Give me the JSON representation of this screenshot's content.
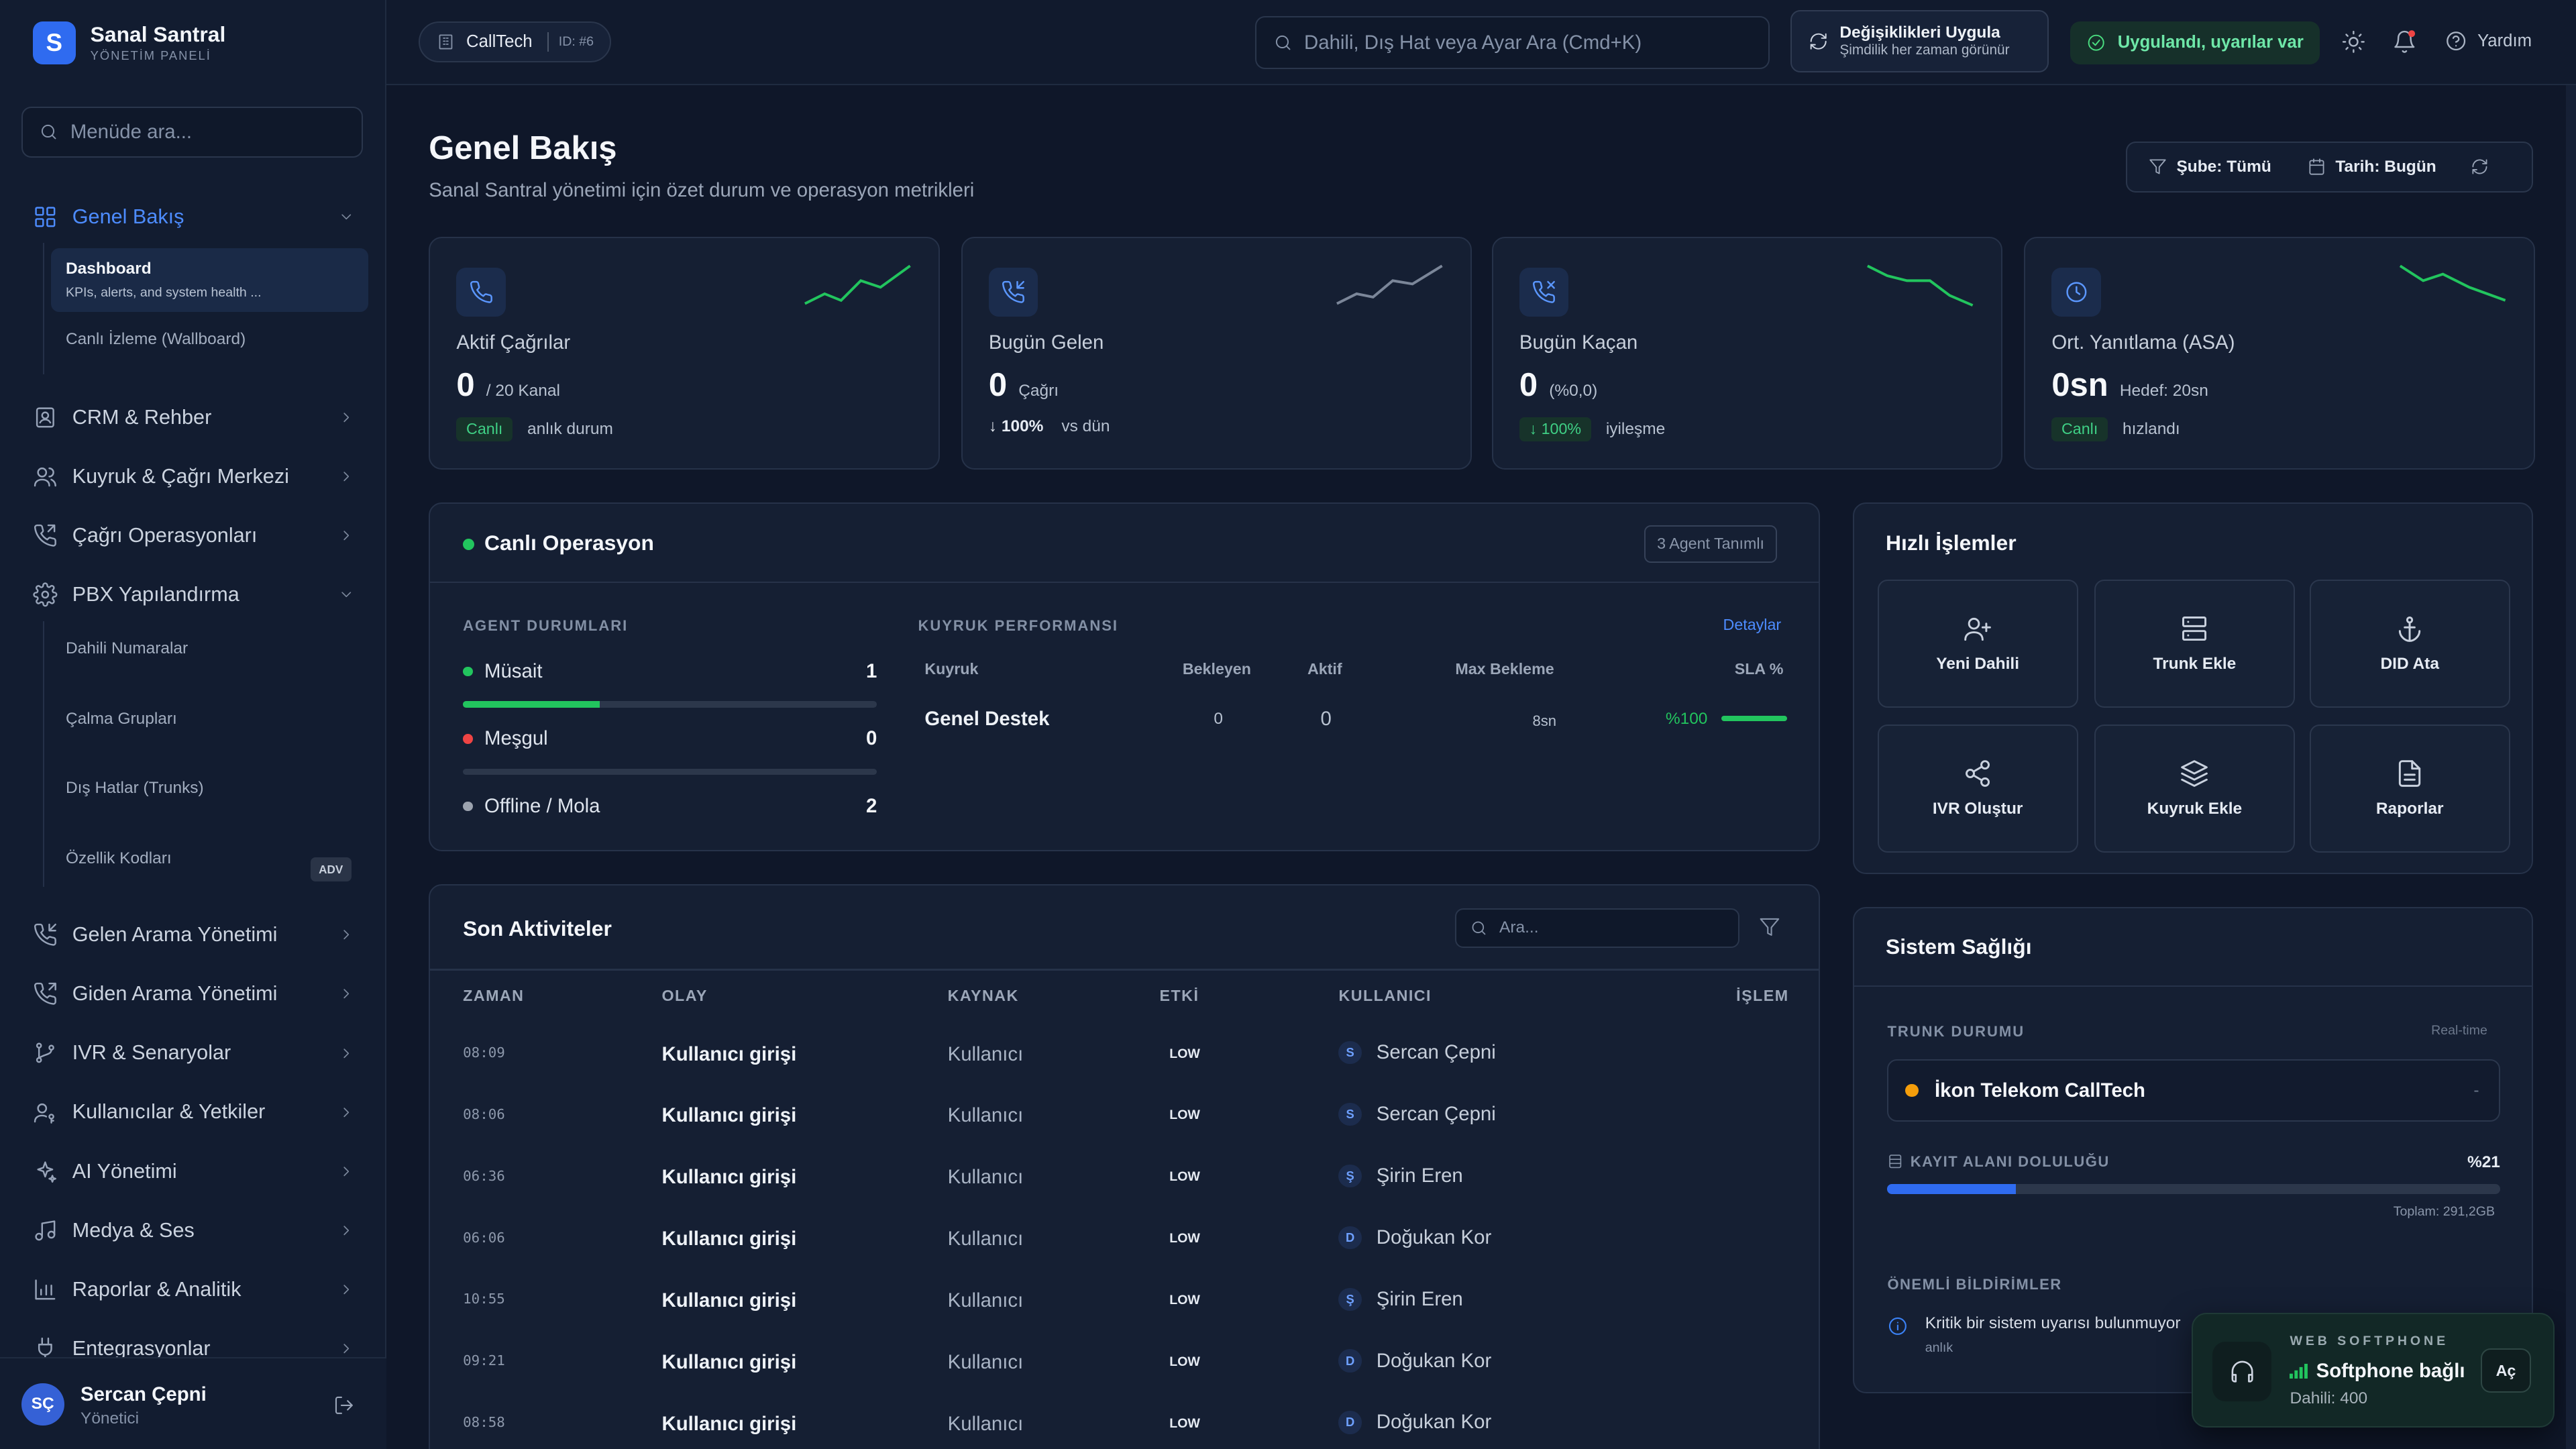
{
  "brand": {
    "logo_letter": "S",
    "title": "Sanal Santral",
    "subtitle": "YÖNETİM PANELİ"
  },
  "sidebar": {
    "search_placeholder": "Menüde ara...",
    "sections": [
      {
        "label": "Genel Bakış",
        "icon": "grid-icon",
        "active": true,
        "expanded": true
      },
      {
        "label": "CRM & Rehber",
        "icon": "contact-book-icon"
      },
      {
        "label": "Kuyruk & Çağrı Merkezi",
        "icon": "users-icon"
      },
      {
        "label": "Çağrı Operasyonları",
        "icon": "phone-forward-icon"
      },
      {
        "label": "PBX Yapılandırma",
        "icon": "gear-icon",
        "expanded": true
      },
      {
        "label": "Gelen Arama Yönetimi",
        "icon": "phone-incoming-icon"
      },
      {
        "label": "Giden Arama Yönetimi",
        "icon": "phone-outgoing-icon"
      },
      {
        "label": "IVR & Senaryolar",
        "icon": "branch-icon"
      },
      {
        "label": "Kullanıcılar & Yetkiler",
        "icon": "user-key-icon"
      },
      {
        "label": "AI Yönetimi",
        "icon": "sparkle-icon"
      },
      {
        "label": "Medya & Ses",
        "icon": "music-icon"
      },
      {
        "label": "Raporlar & Analitik",
        "icon": "bar-chart-icon"
      },
      {
        "label": "Entegrasyonlar",
        "icon": "plug-icon"
      }
    ],
    "overview_sub": {
      "dashboard_title": "Dashboard",
      "dashboard_desc": "KPIs, alerts, and system health ...",
      "wallboard": "Canlı İzleme (Wallboard)"
    },
    "pbx_sub": [
      "Dahili Numaralar",
      "Çalma Grupları",
      "Dış Hatlar (Trunks)",
      "Özellik Kodları"
    ],
    "adv_badge": "ADV"
  },
  "user": {
    "initials": "SÇ",
    "name": "Sercan Çepni",
    "role": "Yönetici"
  },
  "topbar": {
    "tenant_name": "CallTech",
    "tenant_id": "ID: #6",
    "search_placeholder": "Dahili, Dış Hat veya Ayar Ara (Cmd+K)",
    "apply_title": "Değişiklikleri Uygula",
    "apply_sub": "Şimdilik her zaman görünür",
    "status": "Uygulandı, uyarılar var",
    "help": "Yardım"
  },
  "page": {
    "title": "Genel Bakış",
    "subtitle": "Sanal Santral yönetimi için özet durum ve operasyon metrikleri",
    "filter_branch": "Şube: Tümü",
    "filter_date": "Tarih: Bugün"
  },
  "stats": [
    {
      "label": "Aktif Çağrılar",
      "value": "0",
      "suffix": "/ 20 Kanal",
      "tag": "Canlı",
      "foot": "anlık durum",
      "icon": "phone-icon",
      "trend": "up"
    },
    {
      "label": "Bugün Gelen",
      "value": "0",
      "suffix": "Çağrı",
      "delta": "↓ 100%",
      "foot": "vs dün",
      "icon": "phone-incoming-icon",
      "trend": "up"
    },
    {
      "label": "Bugün Kaçan",
      "value": "0",
      "suffix": "(%0,0)",
      "tag": "↓ 100%",
      "foot": "iyileşme",
      "icon": "phone-missed-icon",
      "trend": "down"
    },
    {
      "label": "Ort. Yanıtlama (ASA)",
      "value": "0sn",
      "suffix": "Hedef: 20sn",
      "tag": "Canlı",
      "foot": "hızlandı",
      "icon": "clock-icon",
      "trend": "down"
    }
  ],
  "live": {
    "title": "Canlı Operasyon",
    "agent_badge": "3 Agent Tanımlı",
    "agent_header": "AGENT DURUMLARI",
    "agents": [
      {
        "label": "Müsait",
        "count": "1",
        "color": "#22c55e",
        "fill": 0.33
      },
      {
        "label": "Meşgul",
        "count": "0",
        "color": "#ef4444",
        "fill": 0
      },
      {
        "label": "Offline / Mola",
        "count": "2",
        "color": "#9ca3af"
      }
    ],
    "queue_header": "KUYRUK PERFORMANSI",
    "details": "Detaylar",
    "queue_cols": [
      "Kuyruk",
      "Bekleyen",
      "Aktif",
      "Max Bekleme",
      "SLA %"
    ],
    "queue_row": {
      "name": "Genel Destek",
      "waiting": "0",
      "active": "0",
      "max_wait": "8sn",
      "sla": "%100",
      "sla_value": 100
    }
  },
  "quick": {
    "title": "Hızlı İşlemler",
    "actions": [
      {
        "label": "Yeni Dahili",
        "icon": "user-plus-icon"
      },
      {
        "label": "Trunk Ekle",
        "icon": "server-icon"
      },
      {
        "label": "DID Ata",
        "icon": "anchor-icon"
      },
      {
        "label": "IVR Oluştur",
        "icon": "share-icon"
      },
      {
        "label": "Kuyruk Ekle",
        "icon": "layers-icon"
      },
      {
        "label": "Raporlar",
        "icon": "file-text-icon"
      }
    ]
  },
  "activities": {
    "title": "Son Aktiviteler",
    "search_placeholder": "Ara...",
    "columns": [
      "ZAMAN",
      "OLAY",
      "KAYNAK",
      "ETKİ",
      "KULLANICI",
      "İŞLEM"
    ],
    "rows": [
      {
        "time": "08:09",
        "event": "Kullanıcı girişi",
        "source": "Kullanıcı",
        "impact": "LOW",
        "initial": "S",
        "user": "Sercan Çepni"
      },
      {
        "time": "08:06",
        "event": "Kullanıcı girişi",
        "source": "Kullanıcı",
        "impact": "LOW",
        "initial": "S",
        "user": "Sercan Çepni"
      },
      {
        "time": "06:36",
        "event": "Kullanıcı girişi",
        "source": "Kullanıcı",
        "impact": "LOW",
        "initial": "Ş",
        "user": "Şirin Eren"
      },
      {
        "time": "06:06",
        "event": "Kullanıcı girişi",
        "source": "Kullanıcı",
        "impact": "LOW",
        "initial": "D",
        "user": "Doğukan Kor"
      },
      {
        "time": "10:55",
        "event": "Kullanıcı girişi",
        "source": "Kullanıcı",
        "impact": "LOW",
        "initial": "Ş",
        "user": "Şirin Eren"
      },
      {
        "time": "09:21",
        "event": "Kullanıcı girişi",
        "source": "Kullanıcı",
        "impact": "LOW",
        "initial": "D",
        "user": "Doğukan Kor"
      },
      {
        "time": "08:58",
        "event": "Kullanıcı girişi",
        "source": "Kullanıcı",
        "impact": "LOW",
        "initial": "D",
        "user": "Doğukan Kor"
      }
    ]
  },
  "health": {
    "title": "Sistem Sağlığı",
    "trunk_header": "TRUNK DURUMU",
    "realtime": "Real-time",
    "trunk_name": "İkon Telekom CallTech",
    "trunk_status_color": "#f59e0b",
    "trunk_dash": "-",
    "storage_header": "KAYIT ALANI DOLULUĞU",
    "storage_pct": "%21",
    "storage_value": 0.21,
    "storage_total": "Toplam: 291,2GB",
    "notif_header": "ÖNEMLİ BİLDİRİMLER",
    "notif_text": "Kritik bir sistem uyarısı bulunmuyor",
    "notif_time": "anlık"
  },
  "softphone": {
    "label": "WEB SOFTPHONE",
    "status": "Softphone bağlı",
    "extension": "Dahili: 400",
    "open": "Aç"
  },
  "colors": {
    "accent": "#2f6bf0",
    "success": "#22c55e",
    "danger": "#ef4444",
    "warning": "#f59e0b",
    "background": "#0f1729"
  }
}
